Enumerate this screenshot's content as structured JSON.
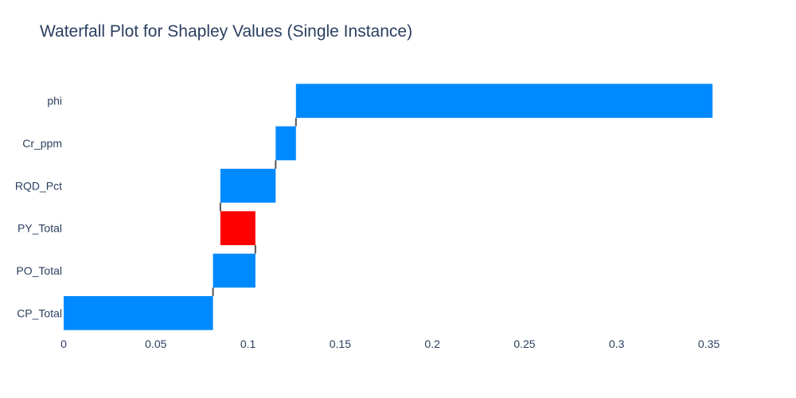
{
  "chart_data": {
    "type": "bar",
    "subtype": "waterfall",
    "orientation": "horizontal",
    "title": "Waterfall Plot for Shapley Values (Single Instance)",
    "xlabel": "",
    "ylabel": "",
    "xlim": [
      0,
      0.38
    ],
    "grid": false,
    "legend": "none",
    "x_ticks": [
      "0",
      "0.05",
      "0.1",
      "0.15",
      "0.2",
      "0.25",
      "0.3",
      "0.35"
    ],
    "x_tick_values": [
      0,
      0.05,
      0.1,
      0.15,
      0.2,
      0.25,
      0.3,
      0.35
    ],
    "categories": [
      "CP_Total",
      "PO_Total",
      "PY_Total",
      "RQD_Pct",
      "Cr_ppm",
      "phi"
    ],
    "values": [
      0.081,
      0.023,
      -0.019,
      0.03,
      0.011,
      0.226
    ],
    "colors": {
      "increasing": "#008aff",
      "decreasing": "#ff0000",
      "connector": "#555555",
      "axis_text": "#2a3f5f"
    }
  }
}
